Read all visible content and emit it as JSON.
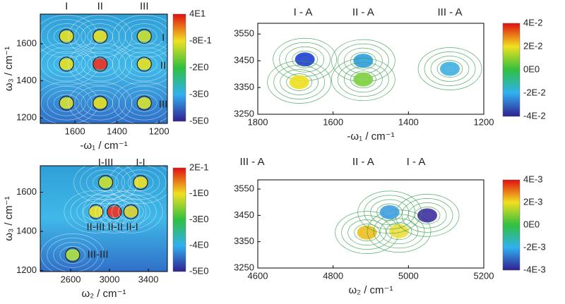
{
  "chart_data": [
    {
      "type": "contour",
      "xlabel": "-ω₁ / cm⁻¹",
      "ylabel": "ω₃ / cm⁻¹",
      "xlim": [
        1765,
        1160
      ],
      "ylim": [
        1170,
        1760
      ],
      "xticks": [
        1600,
        1400,
        1200
      ],
      "yticks": [
        1200,
        1400,
        1600
      ],
      "colorbar_ticks": [
        "4E1",
        "-8E-1",
        "-2E0",
        "-3E0",
        "-5E0"
      ],
      "annotations": [
        {
          "text": "I",
          "x": 1640,
          "y": 1800
        },
        {
          "text": "II",
          "x": 1480,
          "y": 1800
        },
        {
          "text": "III",
          "x": 1270,
          "y": 1800
        },
        {
          "text": "I",
          "x": 1180,
          "y": 1630
        },
        {
          "text": "II",
          "x": 1180,
          "y": 1480
        },
        {
          "text": "III",
          "x": 1180,
          "y": 1270
        }
      ],
      "peaks": {
        "x": [
          1640,
          1480,
          1270,
          1640,
          1480,
          1270,
          1640,
          1480,
          1270
        ],
        "y": [
          1640,
          1640,
          1640,
          1490,
          1490,
          1490,
          1280,
          1280,
          1280
        ],
        "color": [
          "#e8e020",
          "#e8e020",
          "#c8e030",
          "#e8e020",
          "#f03020",
          "#e8e020",
          "#d8e030",
          "#e8e020",
          "#d8e030"
        ]
      }
    },
    {
      "type": "contour",
      "xlabel": "-ω₁ / cm⁻¹",
      "ylabel": "",
      "xlim": [
        1800,
        1200
      ],
      "ylim": [
        3250,
        3590
      ],
      "xticks": [
        1800,
        1600,
        1400,
        1200
      ],
      "yticks": [
        3250,
        3350,
        3450,
        3550
      ],
      "colorbar_ticks": [
        "4E-2",
        "2E-2",
        "0E0",
        "-2E-2",
        "-4E-2"
      ],
      "annotations": [
        {
          "text": "I - A",
          "x": 1680,
          "y": 3630
        },
        {
          "text": "II - A",
          "x": 1520,
          "y": 3630
        },
        {
          "text": "III - A",
          "x": 1290,
          "y": 3630
        }
      ],
      "peaks": {
        "x": [
          1675,
          1690,
          1520,
          1520,
          1290
        ],
        "y": [
          3455,
          3370,
          3450,
          3380,
          3420
        ],
        "color": [
          "#2040d0",
          "#f0e020",
          "#30a0e0",
          "#80d040",
          "#40b0e0"
        ]
      }
    },
    {
      "type": "contour",
      "xlabel": "ω₂ / cm⁻¹",
      "ylabel": "ω₃ / cm⁻¹",
      "xlim": [
        2287,
        3596
      ],
      "ylim": [
        1195,
        1735
      ],
      "xticks": [
        2600,
        3000,
        3400
      ],
      "yticks": [
        1200,
        1400,
        1600
      ],
      "colorbar_ticks": [
        "2E-1",
        "-1E0",
        "-3E0",
        "-4E0",
        "-5E0"
      ],
      "annotations": [
        {
          "text": "I-III",
          "x": 2960,
          "y": 1750
        },
        {
          "text": "I-I",
          "x": 3320,
          "y": 1750
        },
        {
          "text": "II-III II-II II-I",
          "x": 3030,
          "y": 1420
        },
        {
          "text": "III-III",
          "x": 2880,
          "y": 1280
        }
      ],
      "peaks": {
        "x": [
          3320,
          2960,
          2860,
          3050,
          3220,
          2620
        ],
        "y": [
          1650,
          1650,
          1500,
          1500,
          1500,
          1280
        ],
        "color": [
          "#f0e020",
          "#c8e030",
          "#f0e020",
          "#f03020",
          "#e0d030",
          "#b0e040"
        ]
      }
    },
    {
      "type": "contour",
      "xlabel": "ω₂ / cm⁻¹",
      "ylabel": "",
      "xlim": [
        4600,
        5200
      ],
      "ylim": [
        3250,
        3585
      ],
      "xticks": [
        4600,
        4800,
        5000,
        5200
      ],
      "yticks": [
        3250,
        3350,
        3450,
        3550
      ],
      "colorbar_ticks": [
        "4E-3",
        "2E-3",
        "0E0",
        "-2E-3",
        "-4E-3"
      ],
      "annotations": [
        {
          "text": "III - A",
          "x": 4585,
          "y": 3652
        },
        {
          "text": "II - A",
          "x": 4880,
          "y": 3652
        },
        {
          "text": "I - A",
          "x": 5020,
          "y": 3652
        }
      ],
      "peaks": {
        "x": [
          4890,
          4975,
          5050,
          4950
        ],
        "y": [
          3385,
          3390,
          3450,
          3462
        ],
        "color": [
          "#f0c020",
          "#f0e040",
          "#4030a0",
          "#40a0e0"
        ]
      }
    }
  ]
}
